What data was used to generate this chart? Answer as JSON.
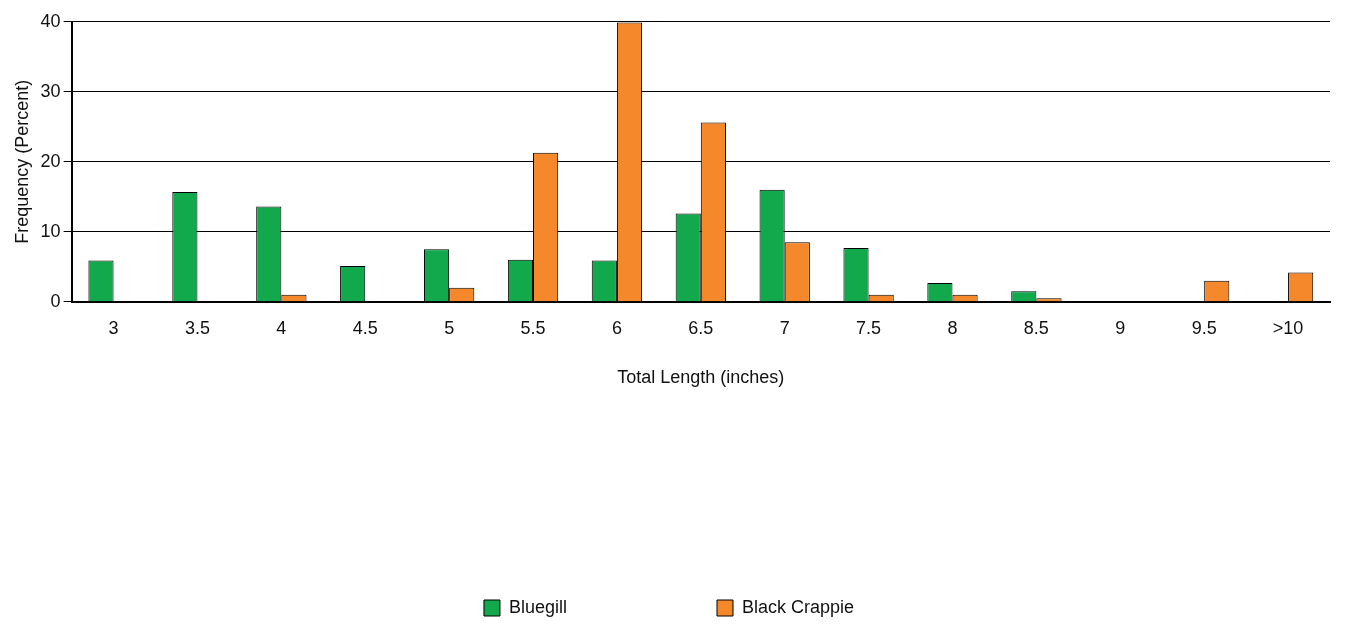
{
  "chart_data": {
    "type": "bar",
    "xlabel": "Total Length (inches)",
    "ylabel": "Frequency (Percent)",
    "categories": [
      "3",
      "3.5",
      "4",
      "4.5",
      "5",
      "5.5",
      "6",
      "6.5",
      "7",
      "7.5",
      "8",
      "8.5",
      "9",
      "9.5",
      ">10"
    ],
    "series": [
      {
        "name": "Bluegill",
        "color": "#12a84c",
        "values": [
          5.9,
          15.7,
          13.6,
          5.1,
          7.5,
          6.0,
          5.9,
          12.6,
          16.0,
          7.7,
          2.7,
          1.5,
          0,
          0,
          0
        ]
      },
      {
        "name": "Black Crappie",
        "color": "#f5882a",
        "values": [
          0,
          0,
          1.0,
          0,
          2.0,
          21.3,
          39.9,
          25.6,
          8.5,
          1.0,
          1.0,
          0.5,
          0,
          3.0,
          4.2
        ]
      }
    ],
    "ylim": [
      0,
      40
    ],
    "yticks": [
      0,
      10,
      20,
      30,
      40
    ],
    "grid": "y",
    "legend": "bottom"
  }
}
